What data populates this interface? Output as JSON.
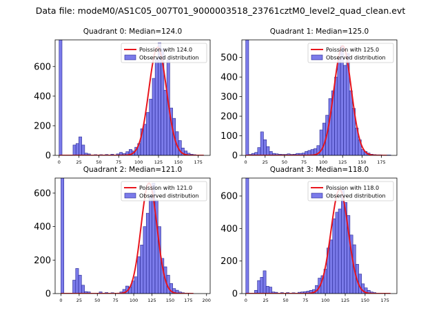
{
  "figure": {
    "suptitle": "Data file: modeM0/AS1C05_007T01_9000003518_23761cztM0_level2_quad_clean.evt"
  },
  "colors": {
    "bar_fill": "#7b7bea",
    "bar_edge": "#23238f",
    "fit_line": "#e8141c",
    "axis": "#000000"
  },
  "chart_data": [
    {
      "type": "bar",
      "title": "Quadrant 0: Median=124.0",
      "legend": {
        "fit": "Poission with 124.0",
        "observed": "Observed distribution",
        "placement": "top-right"
      },
      "xlim": [
        -5,
        190
      ],
      "ylim": [
        0,
        780
      ],
      "xticks": [
        0,
        25,
        50,
        75,
        100,
        125,
        150,
        175
      ],
      "yticks": [
        0,
        200,
        400,
        600
      ],
      "bin_width": 3.66,
      "bins": [
        [
          0,
          780
        ],
        [
          17.5,
          70
        ],
        [
          21.2,
          80
        ],
        [
          24.8,
          125
        ],
        [
          28.5,
          70
        ],
        [
          32.2,
          15
        ],
        [
          35.8,
          10
        ],
        [
          44,
          5
        ],
        [
          51,
          5
        ],
        [
          58,
          6
        ],
        [
          65,
          8
        ],
        [
          72,
          10
        ],
        [
          76,
          20
        ],
        [
          80,
          12
        ],
        [
          84,
          25
        ],
        [
          88,
          40
        ],
        [
          91.5,
          30
        ],
        [
          95.2,
          55
        ],
        [
          98.8,
          80
        ],
        [
          102.5,
          180
        ],
        [
          106.2,
          210
        ],
        [
          109.8,
          290
        ],
        [
          113.5,
          380
        ],
        [
          117.2,
          520
        ],
        [
          120.8,
          650
        ],
        [
          124.5,
          760
        ],
        [
          128.2,
          720
        ],
        [
          131.8,
          440
        ],
        [
          135.5,
          650
        ],
        [
          139.2,
          320
        ],
        [
          142.8,
          250
        ],
        [
          146.5,
          160
        ],
        [
          150.2,
          100
        ],
        [
          153.8,
          50
        ],
        [
          157.5,
          30
        ],
        [
          161.2,
          15
        ],
        [
          164.8,
          8
        ],
        [
          168.5,
          5
        ],
        [
          172.2,
          3
        ]
      ],
      "poisson_mean": 124.0,
      "poisson_peak": 730
    },
    {
      "type": "bar",
      "title": "Quadrant 1: Median=125.0",
      "legend": {
        "fit": "Poission with 125.0",
        "observed": "Observed distribution",
        "placement": "top-right"
      },
      "xlim": [
        -5,
        195
      ],
      "ylim": [
        0,
        590
      ],
      "xticks": [
        0,
        25,
        50,
        75,
        100,
        125,
        150,
        175
      ],
      "yticks": [
        0,
        100,
        200,
        300,
        400,
        500
      ],
      "bin_width": 3.82,
      "bins": [
        [
          0,
          590
        ],
        [
          3.8,
          5
        ],
        [
          7.6,
          10
        ],
        [
          11.5,
          15
        ],
        [
          15.3,
          40
        ],
        [
          19.1,
          120
        ],
        [
          22.9,
          80
        ],
        [
          26.7,
          45
        ],
        [
          30.6,
          20
        ],
        [
          34.4,
          10
        ],
        [
          38.2,
          8
        ],
        [
          42,
          6
        ],
        [
          45.8,
          5
        ],
        [
          49.7,
          5
        ],
        [
          53.5,
          8
        ],
        [
          57.3,
          5
        ],
        [
          61.1,
          6
        ],
        [
          64.9,
          10
        ],
        [
          68.8,
          10
        ],
        [
          72.6,
          12
        ],
        [
          76.4,
          20
        ],
        [
          80.2,
          25
        ],
        [
          84,
          30
        ],
        [
          87.9,
          35
        ],
        [
          91.7,
          50
        ],
        [
          95.5,
          130
        ],
        [
          99.3,
          165
        ],
        [
          103.1,
          205
        ],
        [
          107,
          290
        ],
        [
          110.8,
          330
        ],
        [
          114.6,
          400
        ],
        [
          118.4,
          490
        ],
        [
          122.2,
          560
        ],
        [
          126.1,
          460
        ],
        [
          129.9,
          520
        ],
        [
          133.7,
          330
        ],
        [
          137.5,
          240
        ],
        [
          141.3,
          140
        ],
        [
          145.2,
          80
        ],
        [
          149,
          30
        ],
        [
          152.8,
          20
        ],
        [
          156.6,
          12
        ],
        [
          160.4,
          6
        ],
        [
          164.3,
          4
        ],
        [
          168.1,
          3
        ],
        [
          171.9,
          3
        ],
        [
          175.7,
          2
        ],
        [
          179.5,
          2
        ],
        [
          183.4,
          2
        ]
      ],
      "poisson_mean": 125.0,
      "poisson_peak": 560
    },
    {
      "type": "bar",
      "title": "Quadrant 2: Median=121.0",
      "legend": {
        "fit": "Poission with 121.0",
        "observed": "Observed distribution",
        "placement": "top-right"
      },
      "xlim": [
        -8,
        205
      ],
      "ylim": [
        0,
        690
      ],
      "xticks": [
        0,
        25,
        50,
        75,
        100,
        125,
        150,
        175,
        200
      ],
      "yticks": [
        0,
        200,
        400,
        600
      ],
      "bin_width": 4.04,
      "bins": [
        [
          0,
          690
        ],
        [
          16.2,
          80
        ],
        [
          20.2,
          150
        ],
        [
          24.2,
          110
        ],
        [
          28.3,
          50
        ],
        [
          32.3,
          12
        ],
        [
          36.4,
          10
        ],
        [
          52.5,
          10
        ],
        [
          60.6,
          6
        ],
        [
          68.7,
          5
        ],
        [
          80.8,
          10
        ],
        [
          84.8,
          25
        ],
        [
          88.9,
          45
        ],
        [
          92.9,
          40
        ],
        [
          97,
          75
        ],
        [
          101,
          100
        ],
        [
          105,
          220
        ],
        [
          109.1,
          290
        ],
        [
          113.1,
          400
        ],
        [
          117.2,
          480
        ],
        [
          121.2,
          590
        ],
        [
          125.2,
          660
        ],
        [
          129.3,
          560
        ],
        [
          133.3,
          400
        ],
        [
          137.4,
          210
        ],
        [
          141.4,
          160
        ],
        [
          145.4,
          110
        ],
        [
          149.5,
          60
        ],
        [
          153.5,
          30
        ],
        [
          157.6,
          20
        ],
        [
          161.6,
          10
        ],
        [
          165.6,
          5
        ],
        [
          169.7,
          3
        ],
        [
          173.7,
          3
        ]
      ],
      "poisson_mean": 121.0,
      "poisson_peak": 660
    },
    {
      "type": "bar",
      "title": "Quadrant 3: Median=118.0",
      "legend": {
        "fit": "Poission with 118.0",
        "observed": "Observed distribution",
        "placement": "top-right"
      },
      "xlim": [
        -5,
        190
      ],
      "ylim": [
        0,
        710
      ],
      "xticks": [
        0,
        25,
        50,
        75,
        100,
        125,
        150,
        175
      ],
      "yticks": [
        0,
        200,
        400,
        600
      ],
      "bin_width": 3.64,
      "bins": [
        [
          0,
          710
        ],
        [
          10.9,
          20
        ],
        [
          14.6,
          80
        ],
        [
          18.2,
          100
        ],
        [
          21.8,
          140
        ],
        [
          25.5,
          45
        ],
        [
          29.1,
          40
        ],
        [
          32.8,
          10
        ],
        [
          36.4,
          8
        ],
        [
          43.7,
          6
        ],
        [
          50.9,
          6
        ],
        [
          58.2,
          5
        ],
        [
          65.5,
          8
        ],
        [
          69.1,
          10
        ],
        [
          72.8,
          12
        ],
        [
          76.4,
          15
        ],
        [
          80,
          20
        ],
        [
          83.7,
          25
        ],
        [
          87.3,
          50
        ],
        [
          90.9,
          95
        ],
        [
          94.6,
          110
        ],
        [
          98.2,
          150
        ],
        [
          101.9,
          280
        ],
        [
          105.5,
          330
        ],
        [
          109.2,
          460
        ],
        [
          112.8,
          500
        ],
        [
          116.4,
          520
        ],
        [
          120.1,
          640
        ],
        [
          123.7,
          560
        ],
        [
          127.3,
          480
        ],
        [
          131,
          360
        ],
        [
          134.6,
          300
        ],
        [
          138.3,
          180
        ],
        [
          141.9,
          120
        ],
        [
          145.5,
          60
        ],
        [
          149.2,
          35
        ],
        [
          152.8,
          20
        ],
        [
          156.4,
          10
        ],
        [
          160.1,
          6
        ],
        [
          163.7,
          3
        ],
        [
          167.4,
          2
        ]
      ],
      "poisson_mean": 118.0,
      "poisson_peak": 640
    }
  ]
}
